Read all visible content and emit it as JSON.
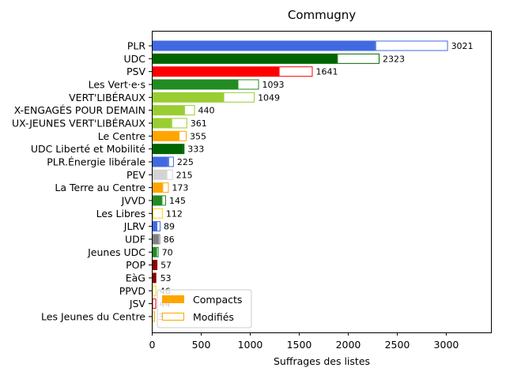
{
  "chart_data": {
    "type": "bar",
    "orientation": "horizontal",
    "title": "Commugny",
    "xlabel": "Suffrages des listes",
    "ylabel": "",
    "xlim": [
      0,
      3460
    ],
    "xticks": [
      0,
      500,
      1000,
      1500,
      2000,
      2500,
      3000
    ],
    "categories": [
      "PLR",
      "UDC",
      "PSV",
      "Les Vert·e·s",
      "VERT'LIBÉRAUX",
      "X-ENGAGÉS POUR DEMAIN",
      "UX-JEUNES VERT'LIBÉRAUX",
      "Le Centre",
      "UDC Liberté et Mobilité",
      "PLR.Énergie libérale",
      "PEV",
      "La Terre au Centre",
      "JVVD",
      "Les Libres",
      "JLRV",
      "UDF",
      "Jeunes UDC",
      "POP",
      "EàG",
      "PPVD",
      "JSV",
      "Les Jeunes du Centre"
    ],
    "colors": [
      "#4169e1",
      "#006400",
      "#ff0000",
      "#228b22",
      "#9acd32",
      "#9acd32",
      "#9acd32",
      "#ffa500",
      "#006400",
      "#4169e1",
      "#d3d3d3",
      "#ffa500",
      "#228b22",
      "#ffd700",
      "#4169e1",
      "#808080",
      "#228b22",
      "#8b0000",
      "#8b0000",
      "#ffd700",
      "#ff0000",
      "#ffa500"
    ],
    "series": [
      {
        "name": "Compacts",
        "values": [
          2280,
          1890,
          1295,
          875,
          730,
          330,
          200,
          275,
          320,
          168,
          150,
          108,
          100,
          8,
          48,
          66,
          46,
          46,
          46,
          4,
          4,
          3
        ]
      },
      {
        "name": "Modifiés",
        "values": [
          741,
          433,
          346,
          218,
          319,
          110,
          161,
          80,
          13,
          57,
          65,
          65,
          45,
          104,
          41,
          20,
          24,
          11,
          7,
          42,
          40,
          30
        ]
      }
    ],
    "totals": [
      "3021",
      "2323",
      "1641",
      "1093",
      "1049",
      "440",
      "361",
      "355",
      "333",
      "225",
      "215",
      "173",
      "145",
      "112",
      "89",
      "86",
      "70",
      "57",
      "53",
      "46",
      "44",
      "33"
    ],
    "legend": {
      "placement": "lower-left",
      "entries": [
        "Compacts",
        "Modifiés"
      ],
      "swatch_color": "#ffa500"
    }
  }
}
